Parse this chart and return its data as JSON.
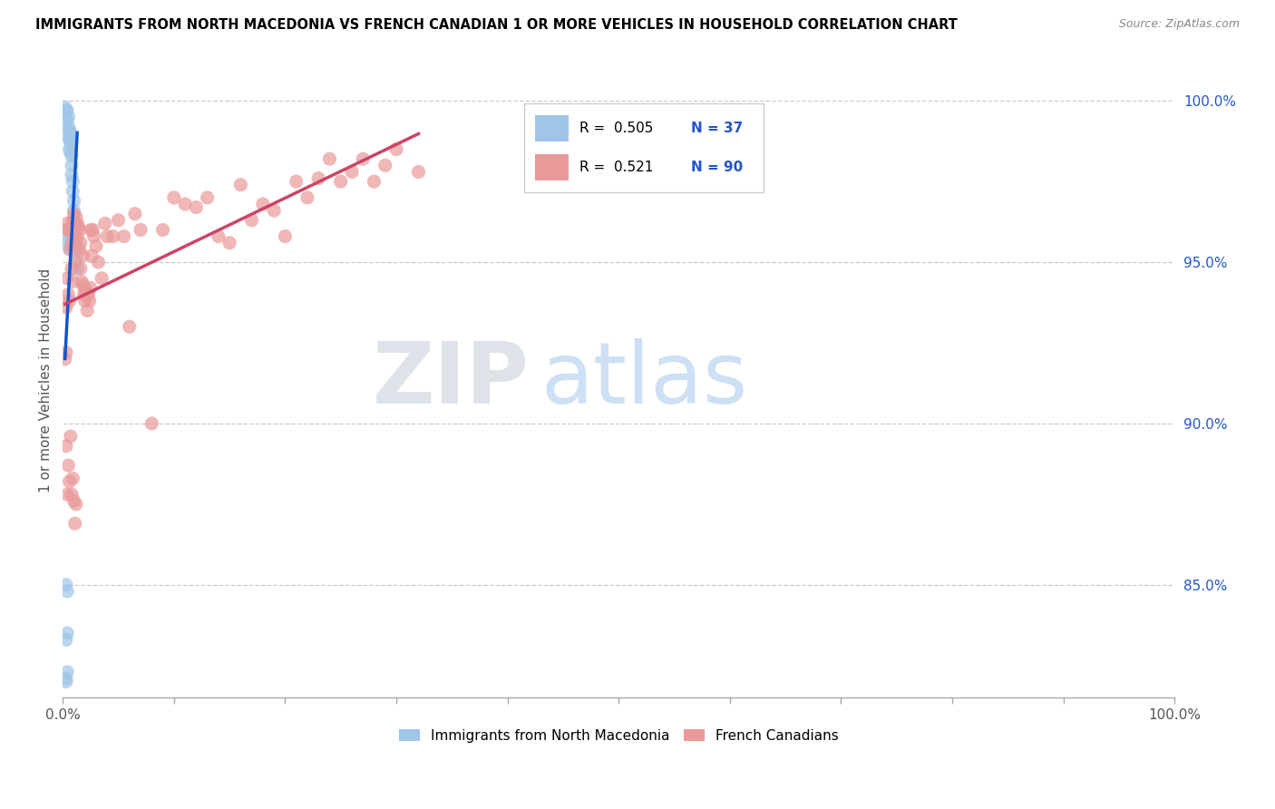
{
  "title": "IMMIGRANTS FROM NORTH MACEDONIA VS FRENCH CANADIAN 1 OR MORE VEHICLES IN HOUSEHOLD CORRELATION CHART",
  "source": "Source: ZipAtlas.com",
  "ylabel": "1 or more Vehicles in Household",
  "legend_r1": "R =  0.505",
  "legend_n1": "N = 37",
  "legend_r2": "R =  0.521",
  "legend_n2": "N = 90",
  "blue_color": "#9fc5e8",
  "pink_color": "#ea9999",
  "blue_line_color": "#1155cc",
  "pink_line_color": "#cc4466",
  "watermark_zip": "ZIP",
  "watermark_atlas": "atlas",
  "ytick_labels": [
    "100.0%",
    "95.0%",
    "90.0%",
    "85.0%"
  ],
  "ytick_values": [
    1.0,
    0.95,
    0.9,
    0.85
  ],
  "xlim": [
    0.0,
    1.0
  ],
  "ylim": [
    0.815,
    1.012
  ],
  "blue_x": [
    0.002,
    0.003,
    0.004,
    0.004,
    0.005,
    0.005,
    0.005,
    0.006,
    0.006,
    0.006,
    0.007,
    0.007,
    0.007,
    0.008,
    0.008,
    0.008,
    0.009,
    0.009,
    0.01,
    0.01,
    0.01,
    0.011,
    0.011,
    0.012,
    0.012,
    0.013,
    0.003,
    0.004,
    0.005,
    0.006,
    0.003,
    0.004,
    0.004,
    0.003,
    0.004,
    0.003,
    0.003
  ],
  "blue_y": [
    0.998,
    0.997,
    0.997,
    0.994,
    0.995,
    0.992,
    0.989,
    0.991,
    0.988,
    0.985,
    0.99,
    0.987,
    0.984,
    0.983,
    0.98,
    0.977,
    0.975,
    0.972,
    0.969,
    0.966,
    0.963,
    0.96,
    0.957,
    0.954,
    0.951,
    0.948,
    0.96,
    0.958,
    0.956,
    0.954,
    0.85,
    0.848,
    0.835,
    0.833,
    0.823,
    0.821,
    0.82
  ],
  "pink_x": [
    0.002,
    0.003,
    0.003,
    0.004,
    0.004,
    0.005,
    0.005,
    0.006,
    0.006,
    0.007,
    0.007,
    0.008,
    0.008,
    0.009,
    0.009,
    0.01,
    0.01,
    0.011,
    0.011,
    0.012,
    0.012,
    0.013,
    0.013,
    0.014,
    0.015,
    0.015,
    0.016,
    0.016,
    0.017,
    0.018,
    0.018,
    0.019,
    0.02,
    0.02,
    0.021,
    0.022,
    0.023,
    0.024,
    0.025,
    0.025,
    0.026,
    0.027,
    0.028,
    0.03,
    0.032,
    0.035,
    0.038,
    0.04,
    0.045,
    0.05,
    0.055,
    0.06,
    0.065,
    0.07,
    0.08,
    0.09,
    0.1,
    0.11,
    0.12,
    0.13,
    0.14,
    0.15,
    0.16,
    0.17,
    0.18,
    0.19,
    0.2,
    0.21,
    0.22,
    0.23,
    0.24,
    0.25,
    0.26,
    0.27,
    0.28,
    0.29,
    0.3,
    0.32,
    0.003,
    0.004,
    0.005,
    0.006,
    0.007,
    0.008,
    0.009,
    0.01,
    0.011,
    0.012
  ],
  "pink_y": [
    0.92,
    0.936,
    0.922,
    0.962,
    0.945,
    0.96,
    0.94,
    0.96,
    0.938,
    0.96,
    0.954,
    0.956,
    0.948,
    0.963,
    0.944,
    0.965,
    0.958,
    0.962,
    0.95,
    0.964,
    0.956,
    0.962,
    0.958,
    0.961,
    0.96,
    0.954,
    0.956,
    0.948,
    0.944,
    0.952,
    0.943,
    0.94,
    0.942,
    0.938,
    0.94,
    0.935,
    0.94,
    0.938,
    0.942,
    0.96,
    0.952,
    0.96,
    0.958,
    0.955,
    0.95,
    0.945,
    0.962,
    0.958,
    0.958,
    0.963,
    0.958,
    0.93,
    0.965,
    0.96,
    0.9,
    0.96,
    0.97,
    0.968,
    0.967,
    0.97,
    0.958,
    0.956,
    0.974,
    0.963,
    0.968,
    0.966,
    0.958,
    0.975,
    0.97,
    0.976,
    0.982,
    0.975,
    0.978,
    0.982,
    0.975,
    0.98,
    0.985,
    0.978,
    0.893,
    0.878,
    0.887,
    0.882,
    0.896,
    0.878,
    0.883,
    0.876,
    0.869,
    0.875
  ]
}
